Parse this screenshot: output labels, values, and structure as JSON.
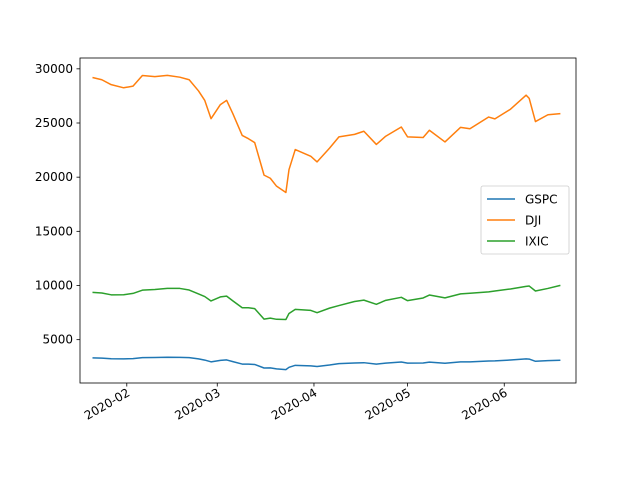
{
  "chart_data": {
    "type": "line",
    "title": "",
    "xlabel": "",
    "ylabel": "",
    "xlim": [
      "2020-01-17",
      "2020-06-24"
    ],
    "ylim": [
      1000,
      31000
    ],
    "x_ticks": [
      "2020-02-01",
      "2020-03-01",
      "2020-04-01",
      "2020-05-01",
      "2020-06-01"
    ],
    "x_tick_labels": [
      "2020-02",
      "2020-03",
      "2020-04",
      "2020-05",
      "2020-06"
    ],
    "y_ticks": [
      5000,
      10000,
      15000,
      20000,
      25000,
      30000
    ],
    "y_tick_labels": [
      "5000",
      "10000",
      "15000",
      "20000",
      "25000",
      "30000"
    ],
    "grid": false,
    "legend": "center-right",
    "x": [
      "2020-01-21",
      "2020-01-24",
      "2020-01-27",
      "2020-01-31",
      "2020-02-03",
      "2020-02-06",
      "2020-02-10",
      "2020-02-14",
      "2020-02-18",
      "2020-02-21",
      "2020-02-24",
      "2020-02-26",
      "2020-02-28",
      "2020-03-02",
      "2020-03-04",
      "2020-03-06",
      "2020-03-09",
      "2020-03-11",
      "2020-03-13",
      "2020-03-16",
      "2020-03-18",
      "2020-03-20",
      "2020-03-23",
      "2020-03-24",
      "2020-03-26",
      "2020-03-31",
      "2020-04-02",
      "2020-04-06",
      "2020-04-09",
      "2020-04-14",
      "2020-04-17",
      "2020-04-21",
      "2020-04-24",
      "2020-04-29",
      "2020-05-01",
      "2020-05-06",
      "2020-05-08",
      "2020-05-13",
      "2020-05-18",
      "2020-05-21",
      "2020-05-27",
      "2020-05-29",
      "2020-06-03",
      "2020-06-08",
      "2020-06-09",
      "2020-06-11",
      "2020-06-15",
      "2020-06-19"
    ],
    "series": [
      {
        "name": "GSPC",
        "color": "#1f77b4",
        "values": [
          3320,
          3295,
          3244,
          3226,
          3249,
          3345,
          3352,
          3380,
          3370,
          3337,
          3226,
          3116,
          2954,
          3090,
          3130,
          2972,
          2746,
          2741,
          2711,
          2386,
          2398,
          2305,
          2237,
          2447,
          2630,
          2585,
          2526,
          2664,
          2790,
          2846,
          2875,
          2737,
          2837,
          2939,
          2831,
          2848,
          2929,
          2820,
          2953,
          2949,
          3036,
          3044,
          3123,
          3232,
          3207,
          3002,
          3066,
          3097
        ]
      },
      {
        "name": "DJI",
        "color": "#ff7f0e",
        "values": [
          29200,
          28990,
          28540,
          28250,
          28400,
          29380,
          29280,
          29400,
          29230,
          28990,
          27960,
          27080,
          25400,
          26700,
          27090,
          25860,
          23850,
          23550,
          23190,
          20190,
          19900,
          19170,
          18590,
          20700,
          22550,
          21920,
          21410,
          22680,
          23720,
          23950,
          24240,
          23020,
          23780,
          24630,
          23720,
          23660,
          24330,
          23250,
          24600,
          24470,
          25550,
          25380,
          26270,
          27570,
          27270,
          25130,
          25760,
          25870
        ]
      },
      {
        "name": "IXIC",
        "color": "#2ca02c",
        "values": [
          9370,
          9310,
          9140,
          9150,
          9270,
          9570,
          9630,
          9730,
          9730,
          9580,
          9220,
          8980,
          8570,
          8950,
          9020,
          8580,
          7950,
          7950,
          7870,
          6900,
          6990,
          6880,
          6860,
          7420,
          7800,
          7700,
          7490,
          7910,
          8150,
          8520,
          8650,
          8260,
          8630,
          8910,
          8600,
          8850,
          9120,
          8860,
          9230,
          9280,
          9410,
          9490,
          9680,
          9920,
          9950,
          9490,
          9730,
          10010
        ]
      }
    ]
  }
}
